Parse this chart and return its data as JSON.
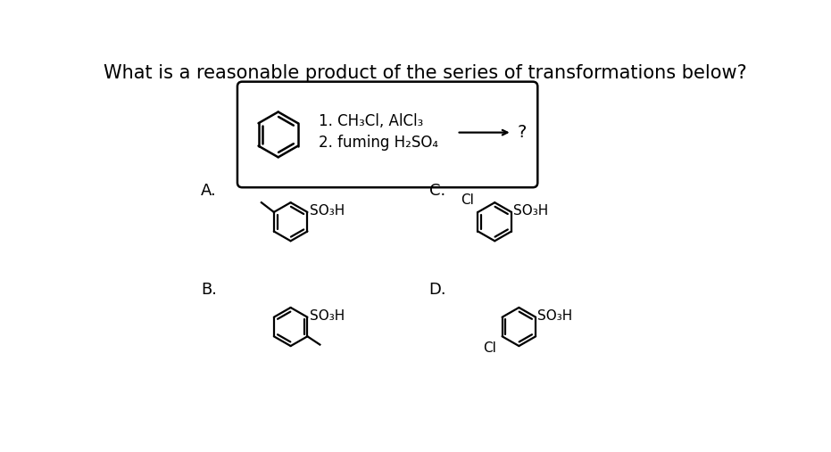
{
  "title": "What is a reasonable product of the series of transformations below?",
  "title_fontsize": 15,
  "background_color": "#ffffff",
  "step1_text": "1. CH₃Cl, AlCl₃",
  "step2_text": "2. fuming H₂SO₄",
  "arrow_text": "?",
  "label_A": "A.",
  "label_B": "B.",
  "label_C": "C.",
  "label_D": "D.",
  "so3h": "SO₃H",
  "cl": "Cl"
}
